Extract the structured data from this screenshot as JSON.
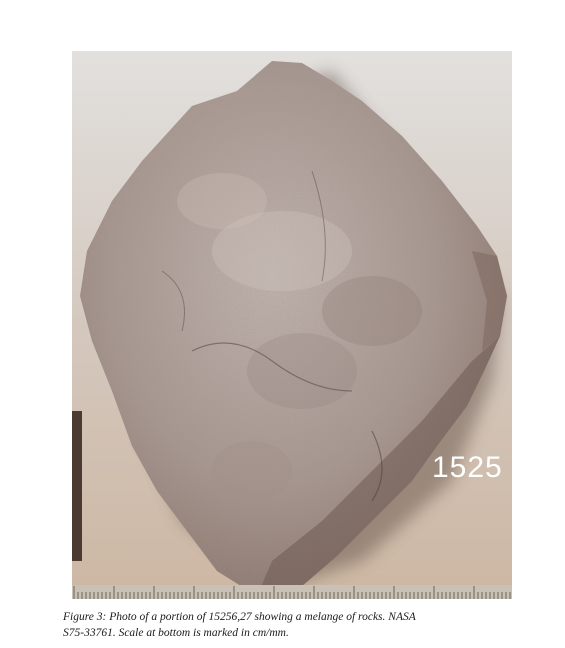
{
  "photo": {
    "sample_label": "1525",
    "depicts": "rock-sample",
    "scale_unit": "cm/mm"
  },
  "caption": {
    "text": "Figure 3:  Photo of a portion of 15256,27 showing a melange of rocks.  NASA\nS75-33761.  Scale at bottom is marked in cm/mm."
  },
  "colors": {
    "background_top": "#e0dedc",
    "background_mid": "#c9b8aa",
    "background_bottom": "#d8ccbf",
    "rock_light": "#bfb1aa",
    "rock_mid": "#9d8a85",
    "rock_dark": "#6e5a52",
    "shadow": "#3a2e28",
    "scale_bar": "#c9c1b5"
  }
}
